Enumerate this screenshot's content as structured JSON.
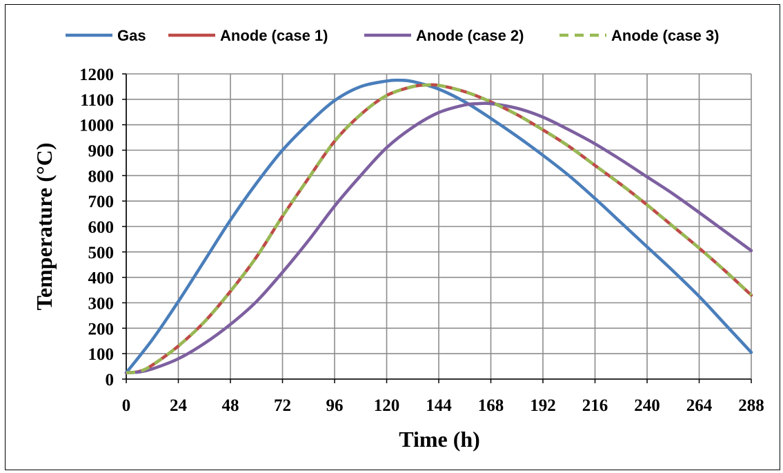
{
  "chart_data": {
    "type": "line",
    "xlabel": "Time (h)",
    "ylabel": "Temperature (°C)",
    "xlim": [
      0,
      288
    ],
    "ylim": [
      0,
      1200
    ],
    "xticks": [
      0,
      24,
      48,
      72,
      96,
      120,
      144,
      168,
      192,
      216,
      240,
      264,
      288
    ],
    "yticks": [
      0,
      100,
      200,
      300,
      400,
      500,
      600,
      700,
      800,
      900,
      1000,
      1100,
      1200
    ],
    "grid": true,
    "legend_position": "top",
    "series": [
      {
        "name": "Gas",
        "color": "#4a7ebb",
        "dash": "solid",
        "x": [
          0,
          12,
          24,
          36,
          48,
          60,
          72,
          84,
          96,
          108,
          120,
          126,
          132,
          144,
          156,
          168,
          180,
          192,
          204,
          216,
          228,
          240,
          252,
          264,
          276,
          288
        ],
        "y": [
          25,
          155,
          305,
          465,
          625,
          770,
          900,
          1005,
          1095,
          1150,
          1172,
          1175,
          1170,
          1140,
          1090,
          1025,
          955,
          880,
          800,
          710,
          615,
          520,
          425,
          325,
          215,
          105
        ]
      },
      {
        "name": "Anode (case 1)",
        "color": "#be4b48",
        "dash": "solid",
        "x": [
          0,
          6,
          12,
          24,
          36,
          48,
          60,
          72,
          84,
          96,
          108,
          120,
          132,
          138,
          144,
          156,
          168,
          180,
          192,
          204,
          216,
          228,
          240,
          252,
          264,
          276,
          288
        ],
        "y": [
          25,
          30,
          55,
          130,
          225,
          345,
          480,
          640,
          790,
          935,
          1040,
          1115,
          1150,
          1156,
          1155,
          1130,
          1090,
          1040,
          980,
          915,
          840,
          765,
          685,
          600,
          515,
          425,
          330
        ]
      },
      {
        "name": "Anode (case 2)",
        "color": "#7d60a0",
        "dash": "solid",
        "x": [
          0,
          6,
          12,
          24,
          36,
          48,
          60,
          72,
          84,
          96,
          108,
          120,
          132,
          144,
          156,
          162,
          168,
          180,
          192,
          204,
          216,
          228,
          240,
          252,
          264,
          276,
          288
        ],
        "y": [
          25,
          28,
          40,
          80,
          140,
          215,
          305,
          420,
          545,
          680,
          800,
          910,
          990,
          1048,
          1078,
          1083,
          1083,
          1065,
          1030,
          980,
          925,
          862,
          795,
          728,
          655,
          580,
          505
        ]
      },
      {
        "name": "Anode (case 3)",
        "color": "#98b954",
        "dash": "dashed",
        "x": [
          0,
          6,
          12,
          24,
          36,
          48,
          60,
          72,
          84,
          96,
          108,
          120,
          132,
          138,
          144,
          156,
          168,
          180,
          192,
          204,
          216,
          228,
          240,
          252,
          264,
          276,
          288
        ],
        "y": [
          25,
          30,
          55,
          130,
          225,
          345,
          480,
          640,
          790,
          935,
          1040,
          1115,
          1150,
          1156,
          1155,
          1130,
          1090,
          1040,
          980,
          915,
          840,
          765,
          685,
          600,
          515,
          425,
          330
        ]
      }
    ]
  }
}
